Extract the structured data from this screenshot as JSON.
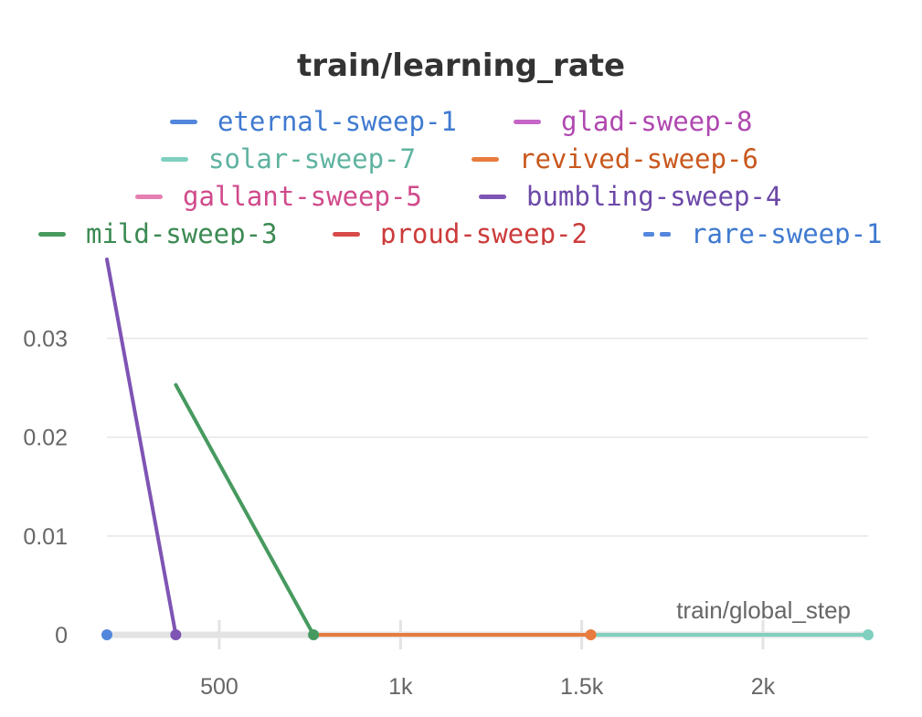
{
  "chart_data": {
    "type": "line",
    "title": "train/learning_rate",
    "xlabel": "train/global_step",
    "ylabel": "",
    "xlim": [
      190,
      2290
    ],
    "ylim": [
      0,
      0.038
    ],
    "x_ticks": [
      500,
      1000,
      1500,
      2000
    ],
    "x_tick_labels": [
      "500",
      "1k",
      "1.5k",
      "2k"
    ],
    "y_ticks": [
      0,
      0.01,
      0.02,
      0.03
    ],
    "y_tick_labels": [
      "0",
      "0.01",
      "0.02",
      "0.03"
    ],
    "grid": true,
    "legend_position": "top",
    "series": [
      {
        "name": "eternal-sweep-1",
        "color": "#5387dd",
        "dashed": false,
        "points": []
      },
      {
        "name": "glad-sweep-8",
        "color": "#c565c7",
        "dashed": false,
        "points": []
      },
      {
        "name": "solar-sweep-7",
        "color": "#7fd0bf",
        "dashed": false,
        "points": [
          [
            1525,
            0
          ],
          [
            2290,
            0
          ]
        ]
      },
      {
        "name": "revived-sweep-6",
        "color": "#e87b3e",
        "dashed": false,
        "points": [
          [
            760,
            0
          ],
          [
            1525,
            0
          ]
        ]
      },
      {
        "name": "gallant-sweep-5",
        "color": "#e57fb1",
        "dashed": false,
        "points": []
      },
      {
        "name": "bumbling-sweep-4",
        "color": "#7e54b4",
        "dashed": false,
        "points": [
          [
            190,
            0.038
          ],
          [
            380,
            0
          ]
        ]
      },
      {
        "name": "mild-sweep-3",
        "color": "#479a5f",
        "dashed": false,
        "points": [
          [
            380,
            0.0253
          ],
          [
            760,
            0
          ]
        ]
      },
      {
        "name": "proud-sweep-2",
        "color": "#d94a4a",
        "dashed": false,
        "points": []
      },
      {
        "name": "rare-sweep-1",
        "color": "#5387dd",
        "dashed": true,
        "points": [
          [
            190,
            0
          ]
        ]
      }
    ],
    "legend_text_colors": [
      "#3f7ad0",
      "#b048b0",
      "#5fb3a0",
      "#c8581e",
      "#d04a8a",
      "#6c48a8",
      "#3b8a52",
      "#cc3b3b",
      "#3f7ad0"
    ]
  }
}
